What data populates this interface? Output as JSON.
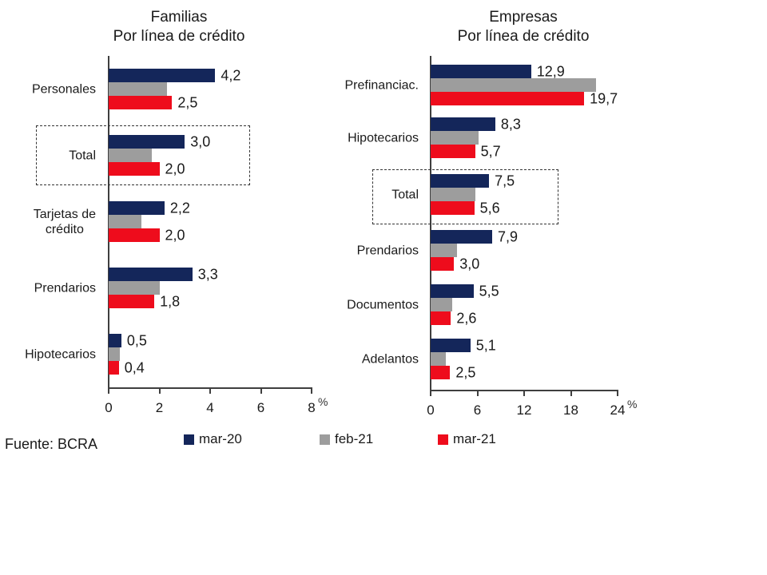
{
  "footer": {
    "source": "Fuente: BCRA"
  },
  "legend": [
    {
      "name": "mar-20",
      "color": "#14265a"
    },
    {
      "name": "feb-21",
      "color": "#9d9d9d"
    },
    {
      "name": "mar-21",
      "color": "#ee0c1c"
    }
  ],
  "chart_data": [
    {
      "type": "bar",
      "orientation": "horizontal",
      "title": "Familias",
      "subtitle": "Por línea de crédito",
      "xlabel": "%",
      "xlim": [
        0,
        8
      ],
      "xticks": [
        0,
        2,
        4,
        6,
        8
      ],
      "grid": false,
      "legend_position": "bottom",
      "categories": [
        "Personales",
        "Total",
        "Tarjetas de\ncrédito",
        "Prendarios",
        "Hipotecarios"
      ],
      "highlight_category": "Total",
      "series": [
        {
          "name": "mar-20",
          "color": "#14265a",
          "values": [
            4.2,
            3.0,
            2.2,
            3.3,
            0.5
          ],
          "value_labels": [
            "4,2",
            "3,0",
            "2,2",
            "3,3",
            "0,5"
          ]
        },
        {
          "name": "feb-21",
          "color": "#9d9d9d",
          "values": [
            2.3,
            1.7,
            1.3,
            2.0,
            0.45
          ],
          "value_labels": null
        },
        {
          "name": "mar-21",
          "color": "#ee0c1c",
          "values": [
            2.5,
            2.0,
            2.0,
            1.8,
            0.4
          ],
          "value_labels": [
            "2,5",
            "2,0",
            "2,0",
            "1,8",
            "0,4"
          ]
        }
      ]
    },
    {
      "type": "bar",
      "orientation": "horizontal",
      "title": "Empresas",
      "subtitle": "Por línea de crédito",
      "xlabel": "%",
      "xlim": [
        0,
        24
      ],
      "xticks": [
        0,
        6,
        12,
        18,
        24
      ],
      "grid": false,
      "legend_position": "bottom",
      "categories": [
        "Prefinanciac.",
        "Hipotecarios",
        "Total",
        "Prendarios",
        "Documentos",
        "Adelantos"
      ],
      "highlight_category": "Total",
      "series": [
        {
          "name": "mar-20",
          "color": "#14265a",
          "values": [
            12.9,
            8.3,
            7.5,
            7.9,
            5.5,
            5.1
          ],
          "value_labels": [
            "12,9",
            "8,3",
            "7,5",
            "7,9",
            "5,5",
            "5,1"
          ]
        },
        {
          "name": "feb-21",
          "color": "#9d9d9d",
          "values": [
            21.2,
            6.2,
            5.7,
            3.4,
            2.8,
            1.9
          ],
          "value_labels": null
        },
        {
          "name": "mar-21",
          "color": "#ee0c1c",
          "values": [
            19.7,
            5.7,
            5.6,
            3.0,
            2.6,
            2.5
          ],
          "value_labels": [
            "19,7",
            "5,7",
            "5,6",
            "3,0",
            "2,6",
            "2,5"
          ]
        }
      ]
    }
  ]
}
